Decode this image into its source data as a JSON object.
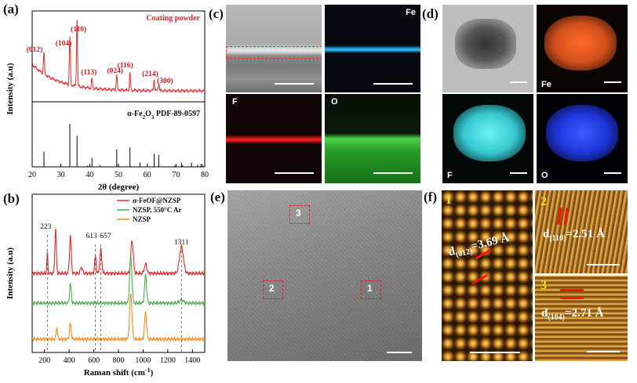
{
  "figure": {
    "panels": {
      "a": {
        "label": "(a)"
      },
      "b": {
        "label": "(b)"
      },
      "c": {
        "label": "(c)"
      },
      "d": {
        "label": "(d)"
      },
      "e": {
        "label": "(e)"
      },
      "f": {
        "label": "(f)"
      }
    },
    "panel_c": {
      "tiles": [
        "",
        "Fe",
        "F",
        "O"
      ]
    },
    "panel_d": {
      "tiles": [
        "",
        "Fe",
        "F",
        "O"
      ]
    },
    "panel_e": {
      "regions": [
        "3",
        "2",
        "1"
      ]
    },
    "panel_f": {
      "tiles": [
        "1",
        "2",
        "3"
      ],
      "annotations": {
        "t1_main": "d",
        "t1_sub": "(012)",
        "t1_val": "=3.69 Å",
        "t2_main": "d",
        "t2_sub": "(110)",
        "t2_val": "=2.51 Å",
        "t3_main": "d",
        "t3_sub": "(104)",
        "t3_val": "=2.71 Å"
      }
    }
  },
  "chart_data": [
    {
      "id": "a",
      "type": "line",
      "ylabel": "Intensity (a.u)",
      "xlabel": "2θ (degree)",
      "xlim": [
        20,
        80
      ],
      "xticks": [
        20,
        30,
        40,
        50,
        60,
        70,
        80
      ],
      "top_series": {
        "name": "Coating powder",
        "color": "#e8262a",
        "peaks": [
          {
            "hkl": "(012)",
            "x": 24.1
          },
          {
            "hkl": "(104)",
            "x": 33.1
          },
          {
            "hkl": "(110)",
            "x": 35.6
          },
          {
            "hkl": "(113)",
            "x": 40.8
          },
          {
            "hkl": "(024)",
            "x": 49.4
          },
          {
            "hkl": "(116)",
            "x": 54.0
          },
          {
            "hkl": "(214)",
            "x": 62.4
          },
          {
            "hkl": "(300)",
            "x": 64.0
          }
        ]
      },
      "reference": {
        "name_prefix": "α-Fe",
        "name_sub1": "2",
        "name_mid": "O",
        "name_sub2": "3",
        "name_suffix": " PDF-89-0597",
        "sticks": [
          [
            24.1,
            0.35
          ],
          [
            33.1,
            1.0
          ],
          [
            35.6,
            0.72
          ],
          [
            39.3,
            0.03
          ],
          [
            40.8,
            0.21
          ],
          [
            43.5,
            0.04
          ],
          [
            49.4,
            0.4
          ],
          [
            54.0,
            0.45
          ],
          [
            57.5,
            0.1
          ],
          [
            62.4,
            0.3
          ],
          [
            64.0,
            0.28
          ],
          [
            69.6,
            0.03
          ],
          [
            71.9,
            0.1
          ],
          [
            72.3,
            0.04
          ],
          [
            75.4,
            0.1
          ],
          [
            77.6,
            0.05
          ],
          [
            78.7,
            0.07
          ],
          [
            79.2,
            0.06
          ]
        ]
      }
    },
    {
      "id": "b",
      "type": "line",
      "ylabel": "Intensity (a.u)",
      "xlabel": "Raman shift (cm",
      "xlabel_sup": "-1",
      "xlabel_end": ")",
      "xlim": [
        100,
        1500
      ],
      "xticks": [
        200,
        400,
        600,
        800,
        1000,
        1200,
        1400
      ],
      "peak_labels": [
        {
          "text": "223",
          "x": 223
        },
        {
          "text": "613",
          "x": 613
        },
        {
          "text": "657",
          "x": 657
        },
        {
          "text": "1311",
          "x": 1311
        }
      ],
      "series": [
        {
          "name": "α-FeOF@NZSP",
          "color": "#e8262a"
        },
        {
          "name": "NZSP, 550°C Ar",
          "color": "#4cae4f"
        },
        {
          "name": "NZSP",
          "color": "#f28c1b"
        }
      ]
    }
  ]
}
